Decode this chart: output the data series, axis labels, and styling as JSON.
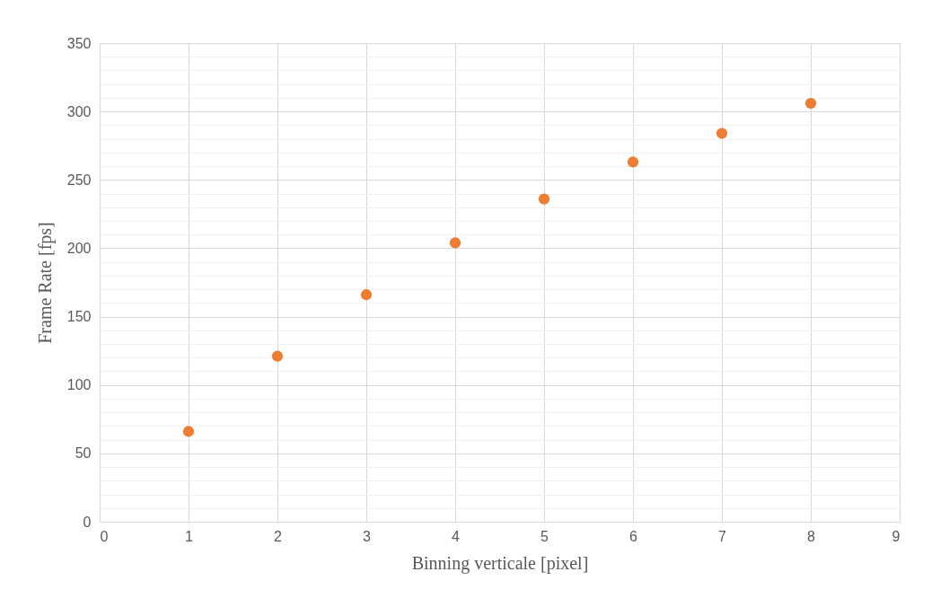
{
  "chart_data": {
    "type": "scatter",
    "xlabel": "Binning verticale [pixel]",
    "ylabel": "Frame Rate [fps]",
    "x": [
      1,
      2,
      3,
      4,
      5,
      6,
      7,
      8
    ],
    "series": [
      {
        "color": "#ed7d31",
        "values": [
          66,
          121,
          166,
          204,
          236,
          263,
          284,
          306
        ]
      }
    ],
    "xlim": [
      0,
      9
    ],
    "xticks": [
      0,
      1,
      2,
      3,
      4,
      5,
      6,
      7,
      8,
      9
    ],
    "ylim": [
      0,
      350
    ],
    "yticks": [
      0,
      {
        "value": 10,
        "label": null
      },
      {
        "value": 20,
        "label": null
      },
      {
        "value": 30,
        "label": null
      },
      {
        "value": 40,
        "label": null
      },
      50,
      {
        "value": 60,
        "label": null
      },
      {
        "value": 70,
        "label": null
      },
      {
        "value": 80,
        "label": null
      },
      {
        "value": 90,
        "label": null
      },
      100,
      {
        "value": 110,
        "label": null
      },
      {
        "value": 120,
        "label": null
      },
      {
        "value": 130,
        "label": null
      },
      {
        "value": 140,
        "label": null
      },
      150,
      {
        "value": 160,
        "label": null
      },
      {
        "value": 170,
        "label": null
      },
      {
        "value": 180,
        "label": null
      },
      {
        "value": 190,
        "label": null
      },
      200,
      {
        "value": 210,
        "label": null
      },
      {
        "value": 220,
        "label": null
      },
      {
        "value": 230,
        "label": null
      },
      {
        "value": 240,
        "label": null
      },
      250,
      {
        "value": 260,
        "label": null
      },
      {
        "value": 270,
        "label": null
      },
      {
        "value": 280,
        "label": null
      },
      {
        "value": 290,
        "label": null
      },
      300,
      {
        "value": 310,
        "label": null
      },
      {
        "value": 320,
        "label": null
      },
      {
        "value": 330,
        "label": null
      },
      {
        "value": 340,
        "label": null
      },
      350
    ],
    "grid": true,
    "marker": "circle"
  }
}
